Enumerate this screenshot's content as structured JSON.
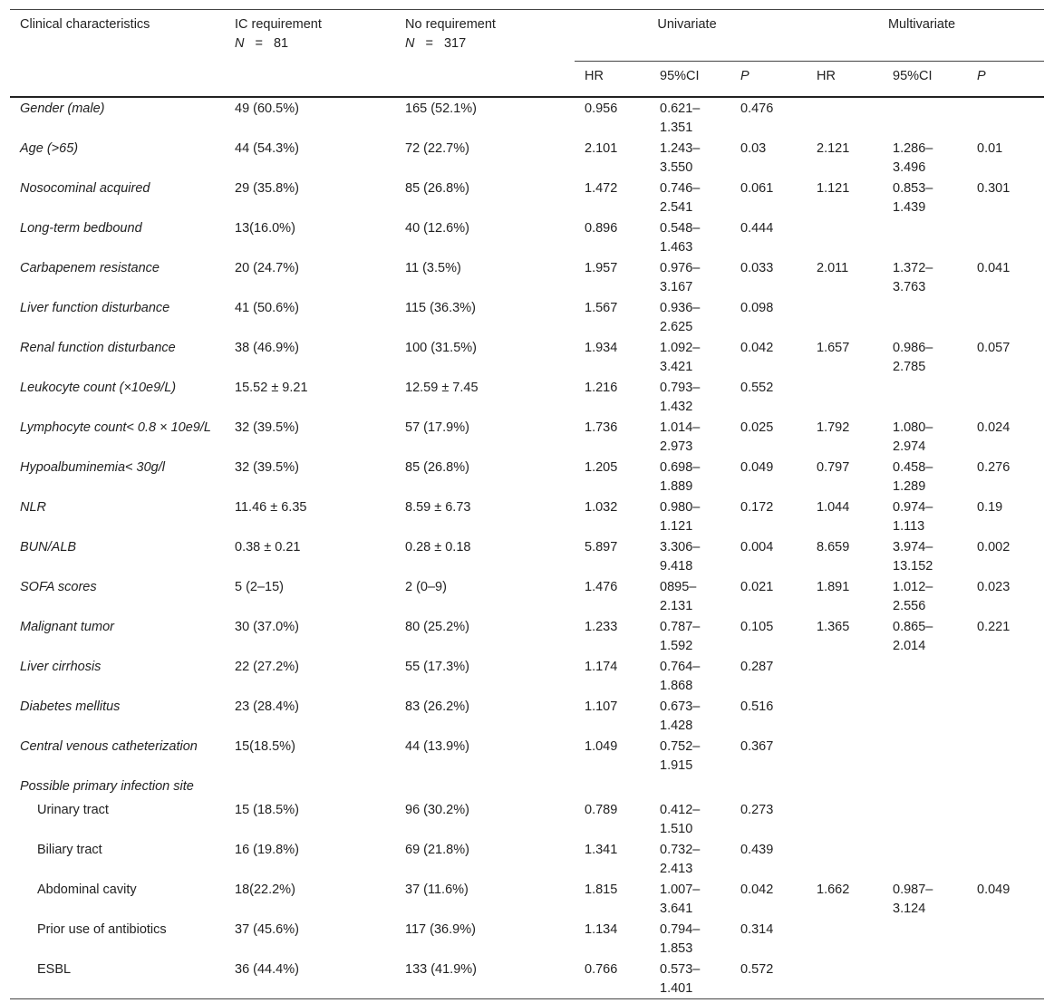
{
  "header": {
    "characteristics": "Clinical characteristics",
    "ic": [
      "IC requirement",
      "N",
      "=",
      "81"
    ],
    "no": [
      "No requirement",
      "N",
      "=",
      "317"
    ],
    "univariate": "Univariate",
    "multivariate": "Multivariate",
    "sub": [
      "HR",
      "95%CI",
      "P",
      "HR",
      "95%CI",
      "P"
    ]
  },
  "rows": [
    {
      "label": "Gender (male)",
      "ic": "49 (60.5%)",
      "no": "165 (52.1%)",
      "uni": [
        "0.956",
        "0.621–1.351",
        "0.476"
      ]
    },
    {
      "label": "Age (>65)",
      "ic": "44 (54.3%)",
      "no": "72 (22.7%)",
      "uni": [
        "2.101",
        "1.243–3.550",
        "0.03"
      ],
      "multi": [
        "2.121",
        "1.286–3.496",
        "0.01"
      ]
    },
    {
      "label": "Nosocominal acquired",
      "ic": "29 (35.8%)",
      "no": "85 (26.8%)",
      "uni": [
        "1.472",
        "0.746–2.541",
        "0.061"
      ],
      "multi": [
        "1.121",
        "0.853–1.439",
        "0.301"
      ]
    },
    {
      "label": "Long-term bedbound",
      "ic": "13(16.0%)",
      "no": "40 (12.6%)",
      "uni": [
        "0.896",
        "0.548–1.463",
        "0.444"
      ]
    },
    {
      "label": "Carbapenem resistance",
      "ic": "20 (24.7%)",
      "no": "11 (3.5%)",
      "uni": [
        "1.957",
        "0.976–3.167",
        "0.033"
      ],
      "multi": [
        "2.011",
        "1.372–3.763",
        "0.041"
      ]
    },
    {
      "label": "Liver function disturbance",
      "ic": "41 (50.6%)",
      "no": "115 (36.3%)",
      "uni": [
        "1.567",
        "0.936–2.625",
        "0.098"
      ]
    },
    {
      "label": "Renal function disturbance",
      "ic": "38 (46.9%)",
      "no": "100 (31.5%)",
      "uni": [
        "1.934",
        "1.092–3.421",
        "0.042"
      ],
      "multi": [
        "1.657",
        "0.986–2.785",
        "0.057"
      ]
    },
    {
      "label": "Leukocyte count (×10e9/L)",
      "ic": "15.52 ± 9.21",
      "no": "12.59 ± 7.45",
      "uni": [
        "1.216",
        "0.793–1.432",
        "0.552"
      ]
    },
    {
      "label": "Lymphocyte count< 0.8 × 10e9/L",
      "ic": "32 (39.5%)",
      "no": "57 (17.9%)",
      "uni": [
        "1.736",
        "1.014–2.973",
        "0.025"
      ],
      "multi": [
        "1.792",
        "1.080–2.974",
        "0.024"
      ]
    },
    {
      "label": "Hypoalbuminemia< 30g/l",
      "ic": "32 (39.5%)",
      "no": "85 (26.8%)",
      "uni": [
        "1.205",
        "0.698–1.889",
        "0.049"
      ],
      "multi": [
        "0.797",
        "0.458–1.289",
        "0.276"
      ]
    },
    {
      "label": "NLR",
      "ic": "11.46 ± 6.35",
      "no": "8.59 ± 6.73",
      "uni": [
        "1.032",
        "0.980–1.121",
        "0.172"
      ],
      "multi": [
        "1.044",
        "0.974–1.113",
        "0.19"
      ]
    },
    {
      "label": "BUN/ALB",
      "ic": "0.38 ± 0.21",
      "no": "0.28 ± 0.18",
      "uni": [
        "5.897",
        "3.306–9.418",
        "0.004"
      ],
      "multi": [
        "8.659",
        "3.974–13.152",
        "0.002"
      ]
    },
    {
      "label": "SOFA scores",
      "ic": "5 (2–15)",
      "no": "2 (0–9)",
      "uni": [
        "1.476",
        "0895–2.131",
        "0.021"
      ],
      "multi": [
        "1.891",
        "1.012–2.556",
        "0.023"
      ]
    },
    {
      "label": "Malignant tumor",
      "ic": "30 (37.0%)",
      "no": "80 (25.2%)",
      "uni": [
        "1.233",
        "0.787–1.592",
        "0.105"
      ],
      "multi": [
        "1.365",
        "0.865–2.014",
        "0.221"
      ]
    },
    {
      "label": "Liver cirrhosis",
      "ic": "22 (27.2%)",
      "no": "55 (17.3%)",
      "uni": [
        "1.174",
        "0.764–1.868",
        "0.287"
      ]
    },
    {
      "label": "Diabetes mellitus",
      "ic": "23 (28.4%)",
      "no": "83 (26.2%)",
      "uni": [
        "1.107",
        "0.673–1.428",
        "0.516"
      ]
    },
    {
      "label": "Central venous catheterization",
      "ic": "15(18.5%)",
      "no": "44 (13.9%)",
      "uni": [
        "1.049",
        "0.752–1.915",
        "0.367"
      ]
    }
  ],
  "group": {
    "label": "Possible primary infection site",
    "rows": [
      {
        "label": "Urinary tract",
        "ic": "15 (18.5%)",
        "no": "96 (30.2%)",
        "uni": [
          "0.789",
          "0.412–1.510",
          "0.273"
        ]
      },
      {
        "label": "Biliary tract",
        "ic": "16 (19.8%)",
        "no": "69 (21.8%)",
        "uni": [
          "1.341",
          "0.732–2.413",
          "0.439"
        ]
      },
      {
        "label": "Abdominal cavity",
        "ic": "18(22.2%)",
        "no": "37 (11.6%)",
        "uni": [
          "1.815",
          "1.007–3.641",
          "0.042"
        ],
        "multi": [
          "1.662",
          "0.987–3.124",
          "0.049"
        ]
      },
      {
        "label": "Prior use of antibiotics",
        "ic": "37 (45.6%)",
        "no": "117 (36.9%)",
        "uni": [
          "1.134",
          "0.794–1.853",
          "0.314"
        ]
      },
      {
        "label": "ESBL",
        "ic": "36 (44.4%)",
        "no": "133 (41.9%)",
        "uni": [
          "0.766",
          "0.573–1.401",
          "0.572"
        ]
      }
    ]
  }
}
